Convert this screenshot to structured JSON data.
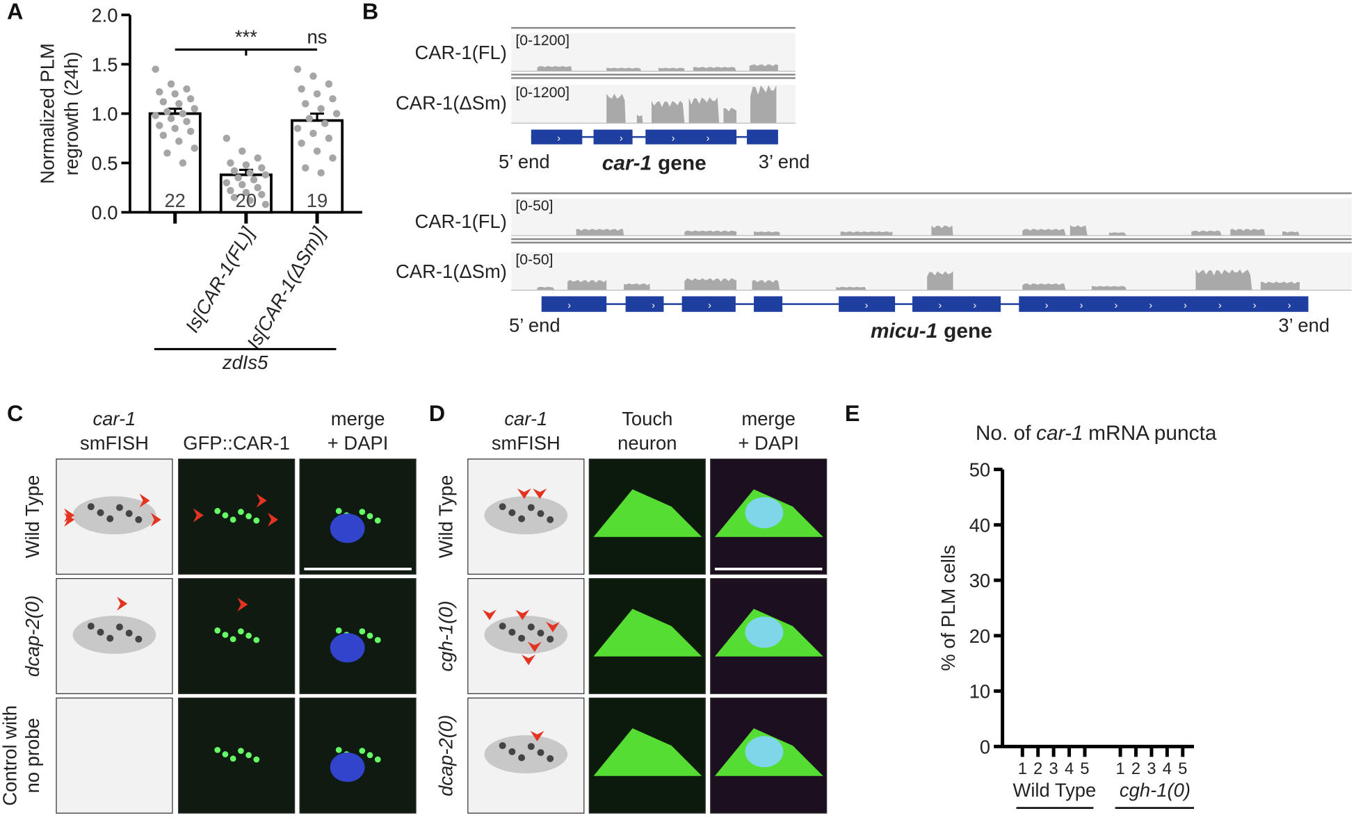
{
  "chart_data": [
    {
      "type": "bar",
      "letter": "A",
      "ylabel_lines": [
        "Normalized PLM",
        "regrowth (24h)"
      ],
      "categories": [
        null,
        "Is[CAR-1(FL)]",
        "Is[CAR-1(ΔSm)]"
      ],
      "values": [
        1.0,
        0.38,
        0.93
      ],
      "error": [
        0.05,
        0.05,
        0.07
      ],
      "n": [
        22,
        20,
        19
      ],
      "points": [
        [
          1.45,
          1.3,
          1.25,
          1.22,
          1.2,
          1.15,
          1.12,
          1.1,
          1.05,
          1.02,
          1.0,
          0.98,
          0.95,
          0.92,
          0.88,
          0.85,
          0.82,
          0.78,
          0.72,
          0.65,
          0.6,
          0.5
        ],
        [
          0.75,
          0.62,
          0.55,
          0.5,
          0.48,
          0.45,
          0.42,
          0.4,
          0.38,
          0.35,
          0.33,
          0.3,
          0.28,
          0.25,
          0.22,
          0.2,
          0.18,
          0.15,
          0.12,
          0.08
        ],
        [
          1.45,
          1.38,
          1.3,
          1.25,
          1.2,
          1.15,
          1.1,
          1.05,
          1.0,
          0.95,
          0.9,
          0.85,
          0.8,
          0.75,
          0.7,
          0.62,
          0.55,
          0.45,
          0.4
        ]
      ],
      "annotations": [
        "***",
        "ns"
      ],
      "group_label": "zdIs5",
      "color": "#ffffff",
      "point_color": "#a6a6a6",
      "ylim": [
        0,
        2.0
      ],
      "yticks": [
        {
          "value": 0,
          "label": "0.0"
        },
        0.5,
        {
          "value": 1,
          "label": "1.0"
        },
        1.5,
        {
          "value": 2,
          "label": "2.0"
        }
      ]
    },
    {
      "type": "bar",
      "letter": "E",
      "title_parts": [
        "No. of",
        "car-1",
        "mRNA puncta"
      ],
      "ylabel": "% of PLM cells",
      "categories": [
        "1",
        "2",
        "3",
        "4",
        "5",
        "1",
        "2",
        "3",
        "4",
        "5"
      ],
      "groups": [
        "Wild Type",
        "cgh-1(0)"
      ],
      "ylim": [
        0,
        50
      ],
      "yticks": [
        0,
        10,
        20,
        30,
        40,
        50
      ]
    }
  ],
  "panel_b": {
    "letter": "B",
    "loci": [
      {
        "gene": "car-1",
        "gene_suffix": "gene",
        "five": "5’ end",
        "three": "3’ end",
        "tracks": [
          {
            "name": "CAR-1(FL)",
            "range": "[0-1200]"
          },
          {
            "name": "CAR-1(ΔSm)",
            "range": "[0-1200]"
          }
        ]
      },
      {
        "gene": "micu-1",
        "gene_suffix": "gene",
        "five": "5’ end",
        "three": "3’ end",
        "tracks": [
          {
            "name": "CAR-1(FL)",
            "range": "[0-50]"
          },
          {
            "name": "CAR-1(ΔSm)",
            "range": "[0-50]"
          }
        ]
      }
    ]
  },
  "panel_c": {
    "letter": "C",
    "columns": [
      {
        "lines": [
          "car-1",
          "smFISH"
        ],
        "italic_first": true
      },
      {
        "lines": [
          "GFP::CAR-1"
        ],
        "italic_first": false
      },
      {
        "lines": [
          "merge",
          "+ DAPI"
        ],
        "italic_first": false
      }
    ],
    "rows": [
      {
        "lines": [
          "Wild Type"
        ],
        "italic": false
      },
      {
        "lines": [
          "dcap-2(0)"
        ],
        "italic": true
      },
      {
        "lines": [
          "Control with",
          "no probe"
        ],
        "italic": false
      }
    ]
  },
  "panel_d": {
    "letter": "D",
    "columns": [
      {
        "lines": [
          "car-1",
          "smFISH"
        ],
        "italic_first": true
      },
      {
        "lines": [
          "Touch",
          "neuron"
        ],
        "italic_first": false
      },
      {
        "lines": [
          "merge",
          "+ DAPI"
        ],
        "italic_first": false
      }
    ],
    "rows": [
      {
        "lines": [
          "Wild Type"
        ],
        "italic": false
      },
      {
        "lines": [
          "cgh-1(0)"
        ],
        "italic": true
      },
      {
        "lines": [
          "dcap-2(0)"
        ],
        "italic": true
      }
    ]
  }
}
